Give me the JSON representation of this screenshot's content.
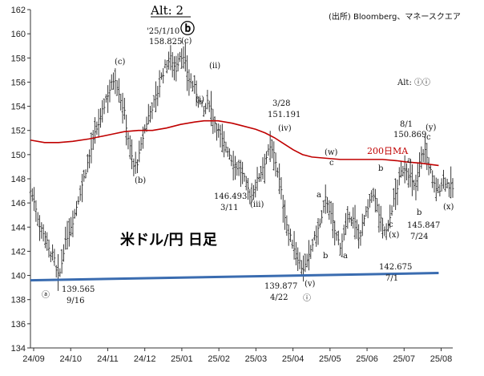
{
  "chart_data": {
    "type": "ohlc",
    "title": "Alt: 2",
    "source": "(出所) Bloomberg、マネースクエア",
    "ylim": [
      134,
      162
    ],
    "y_ticks": [
      "134",
      "136",
      "138",
      "140",
      "142",
      "144",
      "146",
      "148",
      "150",
      "152",
      "154",
      "156",
      "158",
      "160",
      "162"
    ],
    "x_tick_labels": [
      "24/09",
      "24/10",
      "24/11",
      "24/12",
      "25/01",
      "25/02",
      "25/03",
      "25/04",
      "25/05",
      "25/06",
      "25/07",
      "25/08"
    ],
    "grid": false,
    "series": [
      {
        "name": "200日MA",
        "color": "#c00000",
        "points": [
          [
            0,
            151.2
          ],
          [
            6,
            151.0
          ],
          [
            12,
            151.0
          ],
          [
            18,
            151.1
          ],
          [
            25,
            151.3
          ],
          [
            30,
            151.5
          ],
          [
            35,
            151.7
          ],
          [
            40,
            151.9
          ],
          [
            46,
            152.0
          ],
          [
            52,
            152.0
          ],
          [
            58,
            152.2
          ],
          [
            64,
            152.5
          ],
          [
            70,
            152.7
          ],
          [
            74,
            152.8
          ],
          [
            80,
            152.8
          ],
          [
            86,
            152.6
          ],
          [
            90,
            152.4
          ],
          [
            96,
            152.1
          ],
          [
            100,
            151.8
          ],
          [
            104,
            151.4
          ],
          [
            108,
            150.9
          ],
          [
            112,
            150.4
          ],
          [
            116,
            150.0
          ],
          [
            120,
            149.8
          ],
          [
            126,
            149.7
          ],
          [
            132,
            149.6
          ],
          [
            138,
            149.6
          ],
          [
            144,
            149.6
          ],
          [
            150,
            149.6
          ],
          [
            156,
            149.5
          ],
          [
            160,
            149.4
          ],
          [
            166,
            149.3
          ],
          [
            170,
            149.2
          ],
          [
            174,
            149.1
          ]
        ]
      },
      {
        "name": "trendline",
        "color": "#3a6cb0",
        "points": [
          [
            0,
            139.6
          ],
          [
            174,
            140.2
          ]
        ]
      }
    ],
    "ohlc_path": [
      [
        0,
        147.0
      ],
      [
        2,
        146.0
      ],
      [
        4,
        144.0
      ],
      [
        6,
        143.5
      ],
      [
        8,
        142.0
      ],
      [
        10,
        141.5
      ],
      [
        11,
        140.3
      ],
      [
        12,
        139.8
      ],
      [
        13,
        140.5
      ],
      [
        14,
        142.0
      ],
      [
        16,
        143.5
      ],
      [
        18,
        144.5
      ],
      [
        20,
        146.0
      ],
      [
        22,
        147.5
      ],
      [
        24,
        149.0
      ],
      [
        26,
        150.5
      ],
      [
        28,
        152.0
      ],
      [
        30,
        153.0
      ],
      [
        32,
        154.5
      ],
      [
        34,
        155.5
      ],
      [
        36,
        156.5
      ],
      [
        38,
        155.0
      ],
      [
        40,
        153.5
      ],
      [
        42,
        151.0
      ],
      [
        44,
        149.0
      ],
      [
        46,
        149.5
      ],
      [
        48,
        151.5
      ],
      [
        50,
        153.0
      ],
      [
        52,
        154.0
      ],
      [
        54,
        155.0
      ],
      [
        56,
        156.5
      ],
      [
        58,
        157.5
      ],
      [
        60,
        158.0
      ],
      [
        62,
        157.0
      ],
      [
        64,
        158.5
      ],
      [
        66,
        157.5
      ],
      [
        68,
        156.0
      ],
      [
        70,
        155.5
      ],
      [
        72,
        154.5
      ],
      [
        74,
        153.5
      ],
      [
        76,
        154.5
      ],
      [
        78,
        153.0
      ],
      [
        80,
        152.0
      ],
      [
        82,
        151.0
      ],
      [
        84,
        150.5
      ],
      [
        86,
        149.5
      ],
      [
        88,
        149.0
      ],
      [
        90,
        148.5
      ],
      [
        92,
        147.5
      ],
      [
        94,
        146.5
      ],
      [
        96,
        147.5
      ],
      [
        98,
        148.5
      ],
      [
        100,
        149.5
      ],
      [
        102,
        150.5
      ],
      [
        104,
        150.0
      ],
      [
        106,
        148.0
      ],
      [
        108,
        145.5
      ],
      [
        110,
        143.5
      ],
      [
        112,
        142.5
      ],
      [
        114,
        141.5
      ],
      [
        116,
        140.5
      ],
      [
        118,
        141.0
      ],
      [
        120,
        142.5
      ],
      [
        122,
        143.5
      ],
      [
        124,
        144.5
      ],
      [
        126,
        146.5
      ],
      [
        128,
        145.0
      ],
      [
        130,
        143.5
      ],
      [
        132,
        142.5
      ],
      [
        134,
        143.5
      ],
      [
        136,
        145.0
      ],
      [
        138,
        144.5
      ],
      [
        140,
        143.0
      ],
      [
        142,
        144.5
      ],
      [
        144,
        145.5
      ],
      [
        146,
        147.0
      ],
      [
        148,
        145.5
      ],
      [
        150,
        144.0
      ],
      [
        152,
        143.5
      ],
      [
        154,
        145.5
      ],
      [
        156,
        147.0
      ],
      [
        158,
        148.5
      ],
      [
        160,
        149.0
      ],
      [
        162,
        148.0
      ],
      [
        164,
        147.0
      ],
      [
        166,
        149.5
      ],
      [
        168,
        150.5
      ],
      [
        170,
        149.0
      ],
      [
        172,
        147.5
      ],
      [
        174,
        147.0
      ],
      [
        176,
        148.0
      ],
      [
        178,
        147.5
      ],
      [
        180,
        147.2
      ]
    ],
    "x_min": 0,
    "x_max": 180,
    "annotations": {
      "alt_right": "Alt: ⓘⓘ",
      "label_b_top_date": "'25/1/10",
      "label_b_top_val": "158.825",
      "mark_b": "ⓑ",
      "c_under_b": "(c)",
      "c_left": "(c)",
      "ii_top": "(ii)",
      "i_mid": "(i)",
      "b_left": "(b)",
      "date_3_28": "3/28",
      "val_3_28": "151.191",
      "iv": "(iv)",
      "val_146": "146.493",
      "date_3_11": "3/11",
      "iii": "(iii)",
      "w": "(w)",
      "small_c_1": "c",
      "small_a_1": "a",
      "small_b_1": "b",
      "small_a_2": "a",
      "small_b_2": "b",
      "small_c_2": "c",
      "x_mid": "(x)",
      "date_8_1": "8/1",
      "val_8_1": "150.869",
      "y": "(y)",
      "small_c_3": "c",
      "small_a_3": "a",
      "small_b_3": "b",
      "val_145": "145.847",
      "date_7_24": "7/24",
      "x_right": "(x)",
      "val_142": "142.675",
      "date_7_1": "7/1",
      "val_139_877": "139.877",
      "date_4_22": "4/22",
      "v": "(v)",
      "i_circle": "ⓘ",
      "val_139_565": "139.565",
      "date_9_16": "9/16",
      "a_circle": "ⓐ",
      "ma_label": "200日MA",
      "main_label": "米ドル/円 日足"
    }
  }
}
